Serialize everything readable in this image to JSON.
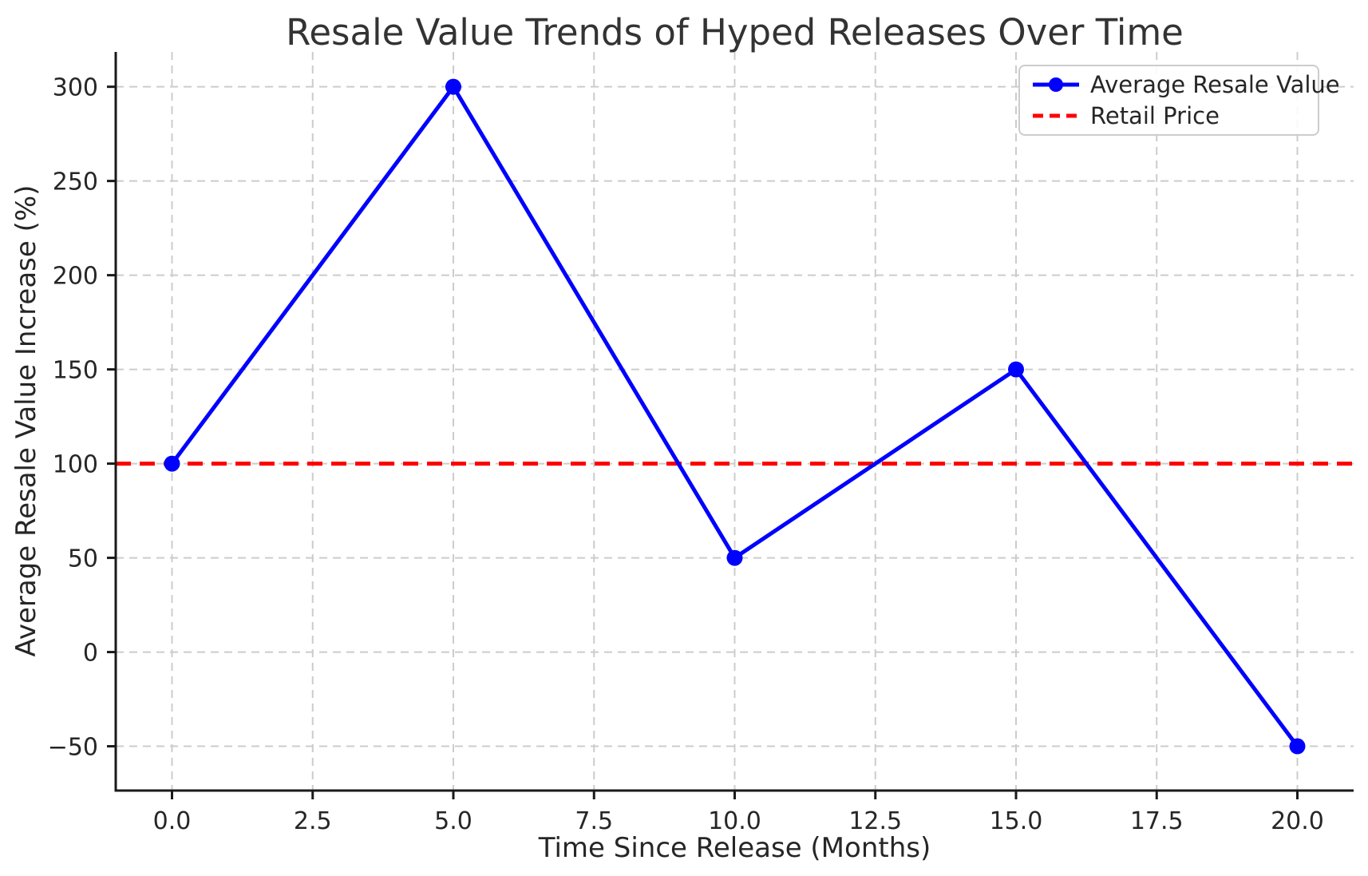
{
  "chart_data": {
    "type": "line",
    "title": "Resale Value Trends of Hyped Releases Over Time",
    "xlabel": "Time Since Release (Months)",
    "ylabel": "Average Resale Value Increase (%)",
    "x": [
      0,
      5,
      10,
      15,
      20
    ],
    "series": [
      {
        "name": "Average Resale Value",
        "type": "line-markers",
        "values": [
          100,
          300,
          50,
          150,
          -50
        ],
        "color": "#0000ff",
        "linestyle": "solid",
        "marker": "circle"
      },
      {
        "name": "Retail Price",
        "type": "hline",
        "value": 100,
        "color": "#ff0000",
        "linestyle": "dashed"
      }
    ],
    "xlim": [
      -1,
      21
    ],
    "ylim": [
      -73.5,
      318.5
    ],
    "xticks": {
      "values": [
        0,
        2.5,
        5,
        7.5,
        10,
        12.5,
        15,
        17.5,
        20
      ],
      "labels": [
        "0.0",
        "2.5",
        "5.0",
        "7.5",
        "10.0",
        "12.5",
        "15.0",
        "17.5",
        "20.0"
      ]
    },
    "yticks": {
      "values": [
        -50,
        0,
        50,
        100,
        150,
        200,
        250,
        300
      ],
      "labels": [
        "−50",
        "0",
        "50",
        "100",
        "150",
        "200",
        "250",
        "300"
      ]
    },
    "grid": true,
    "grid_style": "dashed",
    "legend_position": "upper right"
  },
  "colors": {
    "line_blue": "#0000ff",
    "line_red": "#ff0000",
    "grid": "#cccccc",
    "spine": "#1a1a1a",
    "text": "#262626",
    "legend_border": "#cccccc"
  }
}
